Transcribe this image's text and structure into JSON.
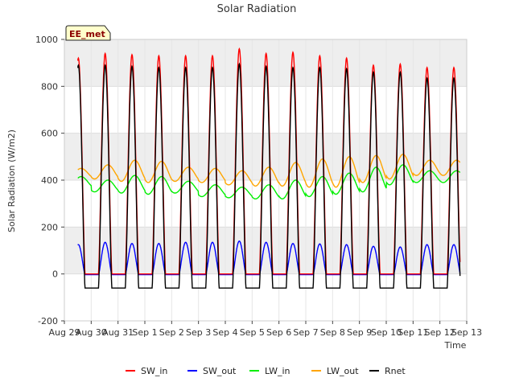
{
  "chart_data": {
    "type": "line",
    "title": "Solar Radiation",
    "xlabel": "Time",
    "ylabel": "Solar Radiation (W/m2)",
    "site_label": "EE_met",
    "xlim": [
      "2023-08-29",
      "2023-09-13"
    ],
    "ylim": [
      -200,
      1000
    ],
    "yticks": [
      -200,
      0,
      200,
      400,
      600,
      800,
      1000
    ],
    "xtick_labels": [
      "Aug 29",
      "Aug 30",
      "Aug 31",
      "Sep 1",
      "Sep 2",
      "Sep 3",
      "Sep 4",
      "Sep 5",
      "Sep 6",
      "Sep 7",
      "Sep 8",
      "Sep 9",
      "Sep 10",
      "Sep 11",
      "Sep 12",
      "Sep 13"
    ],
    "data_start": "2023-08-29T12:00",
    "data_end": "2023-09-12T18:00",
    "series": [
      {
        "name": "SW_in",
        "color": "#ff0000",
        "kind": "daily_peak",
        "night_value": 0,
        "daily_peaks": [
          920,
          940,
          935,
          930,
          930,
          930,
          960,
          940,
          945,
          930,
          920,
          890,
          895,
          880
        ]
      },
      {
        "name": "SW_out",
        "color": "#0000ff",
        "kind": "daily_peak",
        "night_value": -3,
        "daily_peaks": [
          125,
          135,
          130,
          130,
          135,
          135,
          140,
          135,
          130,
          128,
          125,
          118,
          115,
          125
        ]
      },
      {
        "name": "LW_in",
        "color": "#00ee00",
        "kind": "daily_wave",
        "daily_low": [
          370,
          350,
          345,
          340,
          345,
          330,
          325,
          320,
          320,
          330,
          340,
          350,
          380,
          390
        ],
        "daily_high": [
          415,
          400,
          420,
          415,
          395,
          380,
          370,
          380,
          400,
          415,
          430,
          455,
          465,
          440
        ]
      },
      {
        "name": "LW_out",
        "color": "#ffa500",
        "kind": "daily_wave",
        "daily_low": [
          410,
          405,
          395,
          390,
          395,
          390,
          380,
          375,
          375,
          370,
          370,
          390,
          405,
          420
        ],
        "daily_high": [
          450,
          465,
          485,
          480,
          455,
          450,
          440,
          455,
          475,
          490,
          500,
          505,
          510,
          485
        ]
      },
      {
        "name": "Rnet",
        "color": "#000000",
        "kind": "daily_peak",
        "night_value": -60,
        "daily_peaks": [
          890,
          890,
          885,
          880,
          880,
          880,
          895,
          885,
          880,
          880,
          875,
          860,
          860,
          835
        ]
      }
    ],
    "legend_position": "bottom"
  }
}
